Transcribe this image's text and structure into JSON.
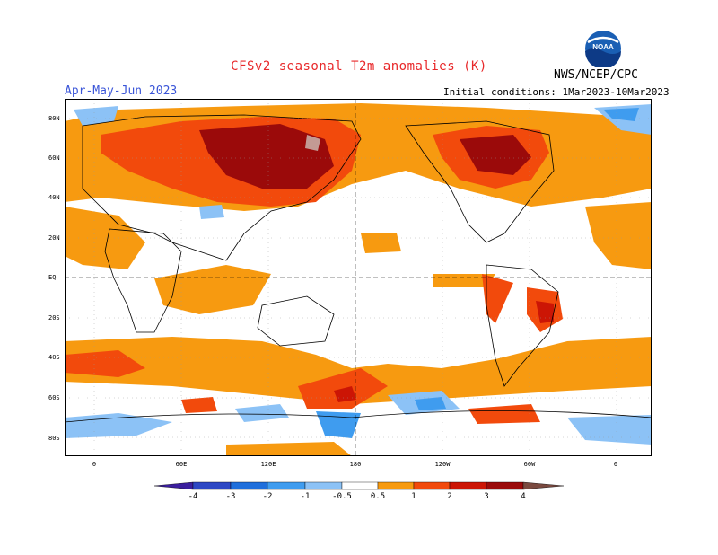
{
  "header": {
    "title": "CFSv2 seasonal T2m anomalies (K)",
    "agency": "NWS/NCEP/CPC",
    "season": "Apr-May-Jun 2023",
    "initial_conditions": "Initial conditions: 1Mar2023-10Mar2023",
    "logo_text": "NOAA"
  },
  "axes": {
    "lat_labels": [
      "80N",
      "60N",
      "40N",
      "20N",
      "EQ",
      "20S",
      "40S",
      "60S",
      "80S"
    ],
    "lon_labels": [
      "0",
      "60E",
      "120E",
      "180",
      "120W",
      "60W",
      "0"
    ]
  },
  "legend": {
    "ticks": [
      "-4",
      "-3",
      "-2",
      "-1",
      "-0.5",
      "0.5",
      "1",
      "2",
      "3",
      "4"
    ],
    "colors": {
      "below_-4": "#3b1e9e",
      "-4_-3": "#2d47c4",
      "-3_-2": "#1f6fdc",
      "-2_-1": "#3f9cef",
      "-1_-0.5": "#8cc2f6",
      "neutral": "#ffffff",
      "0.5_1": "#f79a10",
      "1_2": "#f24a0c",
      "2_3": "#cc1505",
      "3_4": "#9b0a0a",
      "above_4": "#c39a94",
      "extreme": "#7a4a40"
    }
  }
}
